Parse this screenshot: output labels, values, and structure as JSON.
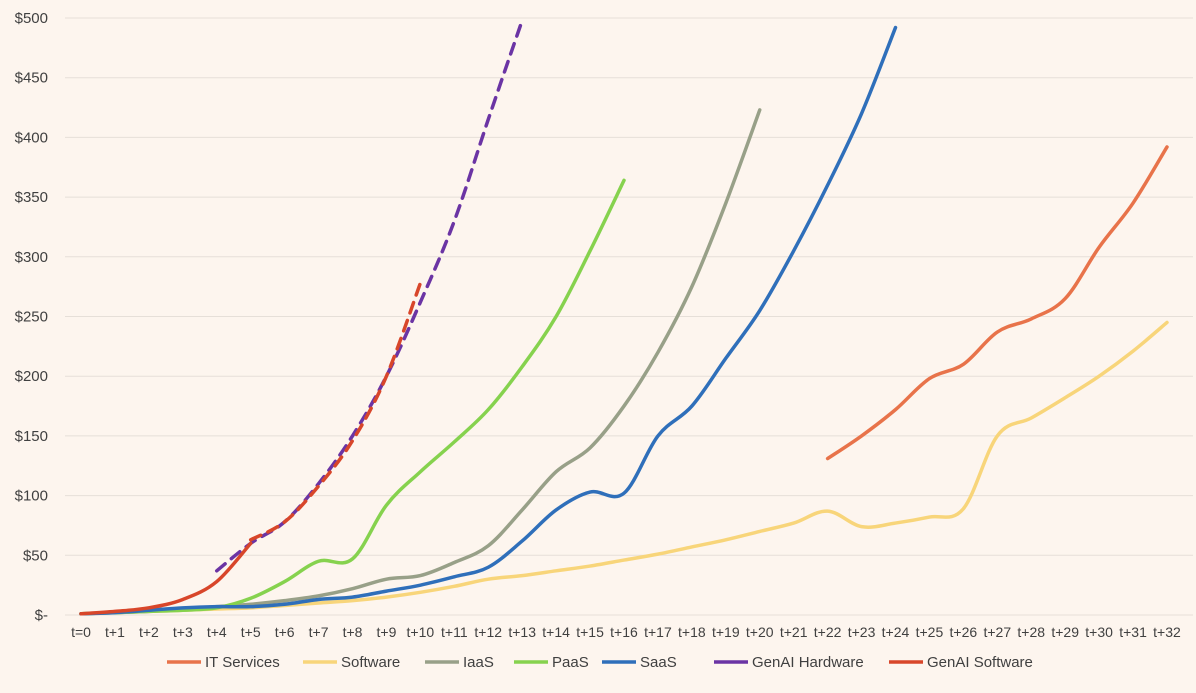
{
  "chart_data": {
    "type": "line",
    "title": "",
    "xlabel": "",
    "ylabel": "",
    "ylim": [
      0,
      500
    ],
    "grid": true,
    "legend_position": "bottom",
    "y_tick_labels": [
      "$-",
      "$50",
      "$100",
      "$150",
      "$200",
      "$250",
      "$300",
      "$350",
      "$400",
      "$450",
      "$500"
    ],
    "y_tick_values": [
      0,
      50,
      100,
      150,
      200,
      250,
      300,
      350,
      400,
      450,
      500
    ],
    "categories": [
      "t=0",
      "t+1",
      "t+2",
      "t+3",
      "t+4",
      "t+5",
      "t+6",
      "t+7",
      "t+8",
      "t+9",
      "t+10",
      "t+11",
      "t+12",
      "t+13",
      "t+14",
      "t+15",
      "t+16",
      "t+17",
      "t+18",
      "t+19",
      "t+20",
      "t+21",
      "t+22",
      "t+23",
      "t+24",
      "t+25",
      "t+26",
      "t+27",
      "t+28",
      "t+29",
      "t+30",
      "t+31",
      "t+32"
    ],
    "series": [
      {
        "name": "IT Services",
        "color": "#e8734a",
        "dashed": false,
        "x": [
          22,
          23,
          24,
          25,
          26,
          27,
          28,
          29,
          30,
          31,
          32
        ],
        "values": [
          131,
          150,
          172,
          198,
          210,
          237,
          248,
          265,
          308,
          345,
          392
        ]
      },
      {
        "name": "Software",
        "color": "#f8d57a",
        "dashed": false,
        "x": [
          0,
          1,
          2,
          3,
          4,
          5,
          6,
          7,
          8,
          9,
          10,
          11,
          12,
          13,
          14,
          15,
          16,
          17,
          18,
          19,
          20,
          21,
          22,
          23,
          24,
          25,
          26,
          27,
          28,
          29,
          30,
          31,
          32
        ],
        "values": [
          1,
          2,
          3,
          4,
          5,
          6,
          8,
          10,
          12,
          15,
          19,
          24,
          30,
          33,
          37,
          41,
          46,
          51,
          57,
          63,
          70,
          77,
          87,
          74,
          77,
          82,
          89,
          150,
          165,
          182,
          200,
          221,
          245
        ]
      },
      {
        "name": "IaaS",
        "color": "#98a088",
        "dashed": false,
        "x": [
          0,
          1,
          2,
          3,
          4,
          5,
          6,
          7,
          8,
          9,
          10,
          11,
          12,
          13,
          14,
          15,
          16,
          17,
          18,
          19,
          20
        ],
        "values": [
          1,
          2,
          3,
          5,
          7,
          9,
          12,
          16,
          22,
          30,
          33,
          44,
          58,
          88,
          120,
          140,
          175,
          220,
          275,
          345,
          423
        ]
      },
      {
        "name": "PaaS",
        "color": "#86d24e",
        "dashed": false,
        "x": [
          0,
          1,
          2,
          3,
          4,
          5,
          6,
          7,
          8,
          9,
          10,
          11,
          12,
          13,
          14,
          15,
          16
        ],
        "values": [
          1,
          2,
          3,
          4,
          6,
          14,
          28,
          45,
          47,
          92,
          120,
          145,
          172,
          208,
          250,
          305,
          364
        ]
      },
      {
        "name": "SaaS",
        "color": "#2f6fba",
        "dashed": false,
        "x": [
          0,
          1,
          2,
          3,
          4,
          5,
          6,
          7,
          8,
          9,
          10,
          11,
          12,
          13,
          14,
          15,
          16,
          17,
          18,
          19,
          20,
          21,
          22,
          23,
          24
        ],
        "values": [
          1,
          2,
          4,
          6,
          7,
          7,
          9,
          13,
          15,
          20,
          25,
          32,
          40,
          62,
          88,
          103,
          102,
          150,
          175,
          215,
          255,
          305,
          360,
          420,
          492
        ]
      },
      {
        "name": "GenAI Hardware",
        "color": "#6b34a4",
        "dashed": true,
        "x": [
          4,
          5,
          6,
          7,
          8,
          9,
          10,
          11,
          12,
          13
        ],
        "values": [
          37,
          60,
          78,
          110,
          150,
          200,
          262,
          330,
          415,
          498
        ]
      },
      {
        "name": "GenAI Software",
        "color": "#d8462a",
        "dashed": false,
        "x": [
          0,
          1,
          2,
          3,
          4,
          5
        ],
        "values": [
          1,
          3,
          6,
          13,
          28,
          60
        ]
      }
    ],
    "overlays": [
      {
        "name": "GenAI Software (dashed)",
        "color": "#d8462a",
        "dashed": true,
        "x": [
          5,
          6,
          7,
          8,
          9,
          10
        ],
        "values": [
          63,
          78,
          108,
          146,
          200,
          278
        ]
      }
    ]
  }
}
